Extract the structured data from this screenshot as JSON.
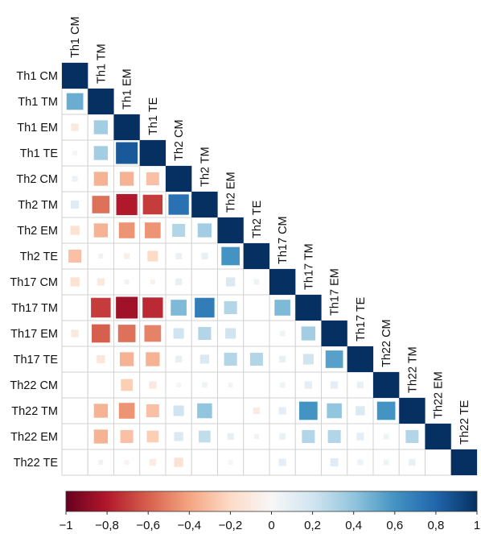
{
  "chart_data": {
    "type": "heatmap",
    "variant": "lower-triangle correlation matrix",
    "variables": [
      "Th1 CM",
      "Th1 TM",
      "Th1 EM",
      "Th1 TE",
      "Th2 CM",
      "Th2 TM",
      "Th2 EM",
      "Th2 TE",
      "Th17 CM",
      "Th17 TM",
      "Th17 EM",
      "Th17 TE",
      "Th22 CM",
      "Th22 TM",
      "Th22 EM",
      "Th22 TE"
    ],
    "value_range": [
      -1,
      1
    ],
    "colorbar": {
      "ticks": [
        "−1",
        "−0,8",
        "−0,6",
        "−0,4",
        "−0,2",
        "0",
        "0,2",
        "0,4",
        "0,6",
        "0,8",
        "1"
      ],
      "colors": [
        "#67001f",
        "#b2182b",
        "#d6604d",
        "#f4a582",
        "#fddbc7",
        "#f7f7f7",
        "#d1e5f0",
        "#92c5de",
        "#4393c3",
        "#2166ac",
        "#053061"
      ],
      "placement": "bottom"
    },
    "grid": true,
    "matrix": [
      [
        1
      ],
      [
        0.5,
        1
      ],
      [
        -0.1,
        0.35,
        1
      ],
      [
        0.02,
        0.35,
        0.85,
        1
      ],
      [
        0.06,
        -0.35,
        -0.35,
        -0.3,
        1
      ],
      [
        0.12,
        -0.55,
        -0.8,
        -0.7,
        0.75,
        1
      ],
      [
        -0.15,
        -0.35,
        -0.45,
        -0.45,
        0.3,
        0.35,
        1
      ],
      [
        -0.3,
        0.04,
        -0.06,
        -0.2,
        0.07,
        0.08,
        0.6,
        1
      ],
      [
        -0.15,
        -0.1,
        0.03,
        -0.04,
        0.08,
        0,
        0.15,
        0.05,
        1
      ],
      [
        0,
        -0.7,
        -0.85,
        -0.75,
        0.45,
        0.7,
        0.3,
        0,
        0.45,
        1
      ],
      [
        -0.1,
        -0.6,
        -0.55,
        -0.5,
        0.2,
        0.3,
        0.2,
        0,
        0.05,
        0.35,
        1
      ],
      [
        0,
        -0.12,
        -0.35,
        -0.35,
        0.08,
        0.15,
        0.3,
        0.3,
        0.08,
        0.2,
        0.55,
        1
      ],
      [
        0,
        0,
        -0.25,
        -0.1,
        0.02,
        0.05,
        0.03,
        0,
        0.05,
        0.1,
        0.1,
        0.08,
        1
      ],
      [
        0,
        -0.35,
        -0.45,
        -0.3,
        0.2,
        0.4,
        0,
        -0.08,
        0.1,
        0.6,
        0.4,
        0.15,
        0.6,
        1
      ],
      [
        0,
        -0.35,
        -0.3,
        -0.25,
        0.15,
        0.25,
        0.08,
        0.03,
        0.07,
        0.3,
        0.3,
        0.1,
        0.05,
        0.3,
        1
      ],
      [
        0,
        0.04,
        -0.03,
        -0.08,
        -0.15,
        0,
        0.02,
        0,
        0.1,
        0,
        0.12,
        0.06,
        0.05,
        0.08,
        0,
        1
      ]
    ]
  }
}
